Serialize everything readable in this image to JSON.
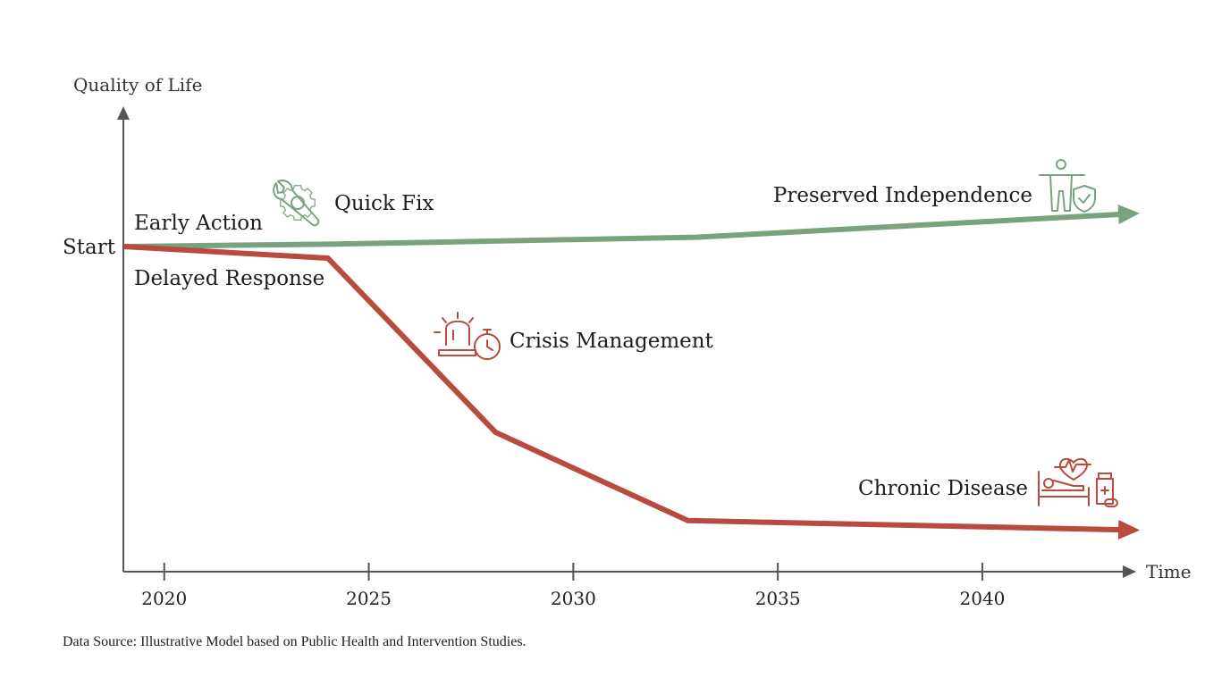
{
  "chart_data": {
    "type": "line",
    "x_title": "Time",
    "y_title": "Quality of Life",
    "start_label": "Start",
    "x_ticks": [
      2020,
      2025,
      2030,
      2035,
      2040
    ],
    "xlim": [
      2019,
      2044
    ],
    "ylim": [
      0,
      100
    ],
    "series": [
      {
        "color": "#78a37f",
        "points": [
          [
            2019,
            70
          ],
          [
            2024,
            70.5
          ],
          [
            2033,
            72
          ],
          [
            2043.5,
            77
          ]
        ],
        "labels": [
          "Early Action",
          "Quick Fix",
          "Preserved Independence"
        ],
        "icons": [
          "wrench-gear-icon",
          "person-shield-icon"
        ]
      },
      {
        "color": "#b84a3e",
        "points": [
          [
            2019,
            70
          ],
          [
            2024,
            67.5
          ],
          [
            2028.1,
            30
          ],
          [
            2032.8,
            11
          ],
          [
            2043.5,
            9
          ]
        ],
        "labels": [
          "Delayed Response",
          "Crisis Management",
          "Chronic Disease"
        ],
        "icons": [
          "alarm-stopwatch-icon",
          "hospital-bed-icon"
        ]
      }
    ]
  },
  "source_text": "Data Source: Illustrative Model based on Public Health and Intervention Studies."
}
